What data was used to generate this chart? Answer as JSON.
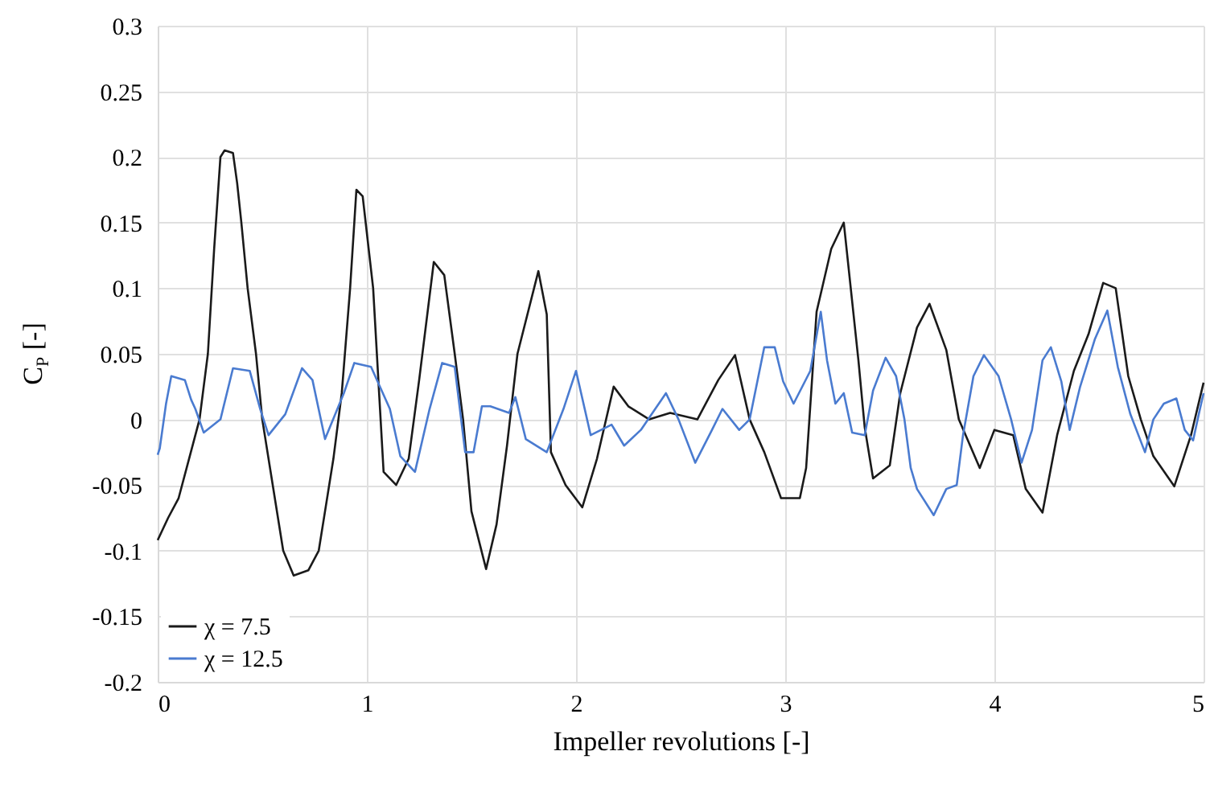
{
  "chart_data": {
    "type": "line",
    "xlabel": "Impeller revolutions [-]",
    "ylabel": "C$_{P}$ [-]",
    "xlim": [
      0,
      5
    ],
    "xticks": [
      0,
      1,
      2,
      3,
      4,
      5
    ],
    "ylim": [
      -0.2,
      0.3
    ],
    "yticks": [
      {
        "value": -0.2,
        "label": "-0.2"
      },
      {
        "value": -0.15,
        "label": "-0.15"
      },
      {
        "value": -0.1,
        "label": "-0.1"
      },
      {
        "value": -0.05,
        "label": "-0.05"
      },
      {
        "value": 0,
        "label": "0"
      },
      {
        "value": 0.05,
        "label": "0.05"
      },
      {
        "value": 0.1,
        "label": "0.1"
      },
      {
        "value": 0.15,
        "label": "0.15"
      },
      {
        "value": 0.2,
        "label": "0.2"
      },
      {
        "value": 0.25,
        "label": "0.25"
      },
      {
        "value": 0.3,
        "label": "0.3"
      }
    ],
    "grid": true,
    "legend": "bottom left",
    "line_style": "solid",
    "marker": "none",
    "series": [
      {
        "name": "χ = 7.5",
        "color": "#1a1a1a",
        "x": [
          0,
          0.05,
          0.1,
          0.15,
          0.2,
          0.24,
          0.27,
          0.3,
          0.32,
          0.36,
          0.38,
          0.4,
          0.43,
          0.47,
          0.5,
          0.55,
          0.6,
          0.65,
          0.72,
          0.77,
          0.8,
          0.84,
          0.88,
          0.92,
          0.95,
          0.98,
          1.03,
          1.08,
          1.14,
          1.2,
          1.25,
          1.32,
          1.37,
          1.42,
          1.46,
          1.5,
          1.57,
          1.62,
          1.67,
          1.72,
          1.82,
          1.86,
          1.88,
          1.95,
          2.03,
          2.1,
          2.18,
          2.25,
          2.35,
          2.45,
          2.58,
          2.68,
          2.76,
          2.83,
          2.9,
          2.98,
          3.07,
          3.1,
          3.15,
          3.22,
          3.28,
          3.35,
          3.38,
          3.42,
          3.5,
          3.55,
          3.63,
          3.69,
          3.77,
          3.83,
          3.93,
          4.0,
          4.09,
          4.15,
          4.23,
          4.3,
          4.38,
          4.45,
          4.52,
          4.58,
          4.64,
          4.7,
          4.76,
          4.86,
          4.94,
          5.0
        ],
        "values": [
          -0.092,
          -0.075,
          -0.06,
          -0.03,
          0.0,
          0.05,
          0.13,
          0.2,
          0.205,
          0.203,
          0.18,
          0.15,
          0.1,
          0.05,
          0.0,
          -0.05,
          -0.1,
          -0.119,
          -0.115,
          -0.1,
          -0.07,
          -0.03,
          0.02,
          0.1,
          0.175,
          0.17,
          0.1,
          -0.04,
          -0.05,
          -0.03,
          0.03,
          0.12,
          0.11,
          0.05,
          0.0,
          -0.07,
          -0.114,
          -0.08,
          -0.02,
          0.05,
          0.113,
          0.08,
          -0.025,
          -0.05,
          -0.067,
          -0.03,
          0.025,
          0.01,
          0.0,
          0.005,
          0.0,
          0.03,
          0.049,
          0.0,
          -0.025,
          -0.06,
          -0.06,
          -0.037,
          0.082,
          0.13,
          0.15,
          0.045,
          -0.006,
          -0.045,
          -0.035,
          0.02,
          0.07,
          0.088,
          0.053,
          0.0,
          -0.037,
          -0.008,
          -0.012,
          -0.053,
          -0.071,
          -0.012,
          0.037,
          0.065,
          0.104,
          0.1,
          0.033,
          0.0,
          -0.028,
          -0.051,
          -0.012,
          0.028
        ]
      },
      {
        "name": "χ = 12.5",
        "color": "#4a7bd0",
        "x": [
          0,
          0.01,
          0.04,
          0.065,
          0.13,
          0.16,
          0.18,
          0.22,
          0.3,
          0.36,
          0.44,
          0.49,
          0.53,
          0.61,
          0.69,
          0.74,
          0.8,
          0.89,
          0.94,
          1.02,
          1.11,
          1.16,
          1.23,
          1.3,
          1.36,
          1.42,
          1.47,
          1.51,
          1.55,
          1.59,
          1.68,
          1.71,
          1.76,
          1.86,
          1.94,
          2.0,
          2.07,
          2.17,
          2.23,
          2.31,
          2.43,
          2.49,
          2.57,
          2.65,
          2.7,
          2.78,
          2.83,
          2.9,
          2.95,
          2.99,
          3.04,
          3.12,
          3.17,
          3.2,
          3.24,
          3.28,
          3.32,
          3.38,
          3.42,
          3.48,
          3.53,
          3.57,
          3.6,
          3.63,
          3.71,
          3.77,
          3.82,
          3.85,
          3.9,
          3.95,
          4.02,
          4.08,
          4.13,
          4.18,
          4.23,
          4.27,
          4.32,
          4.36,
          4.41,
          4.48,
          4.54,
          4.59,
          4.65,
          4.72,
          4.76,
          4.81,
          4.87,
          4.91,
          4.95,
          4.98,
          5.0
        ],
        "values": [
          -0.027,
          -0.022,
          0.012,
          0.033,
          0.03,
          0.015,
          0.008,
          -0.01,
          0.0,
          0.039,
          0.037,
          0.008,
          -0.012,
          0.004,
          0.039,
          0.03,
          -0.015,
          0.02,
          0.043,
          0.04,
          0.008,
          -0.028,
          -0.04,
          0.008,
          0.043,
          0.04,
          -0.025,
          -0.025,
          0.01,
          0.01,
          0.005,
          0.017,
          -0.015,
          -0.025,
          0.008,
          0.037,
          -0.012,
          -0.004,
          -0.02,
          -0.008,
          0.02,
          0.0,
          -0.033,
          -0.008,
          0.008,
          -0.008,
          0.0,
          0.055,
          0.055,
          0.029,
          0.012,
          0.037,
          0.082,
          0.045,
          0.012,
          0.02,
          -0.01,
          -0.012,
          0.022,
          0.047,
          0.033,
          0.0,
          -0.037,
          -0.053,
          -0.073,
          -0.053,
          -0.05,
          -0.012,
          0.033,
          0.049,
          0.033,
          0.0,
          -0.033,
          -0.008,
          0.045,
          0.055,
          0.029,
          -0.008,
          0.025,
          0.061,
          0.083,
          0.04,
          0.004,
          -0.025,
          0.0,
          0.012,
          0.016,
          -0.008,
          -0.016,
          0.006,
          0.02
        ]
      }
    ]
  }
}
